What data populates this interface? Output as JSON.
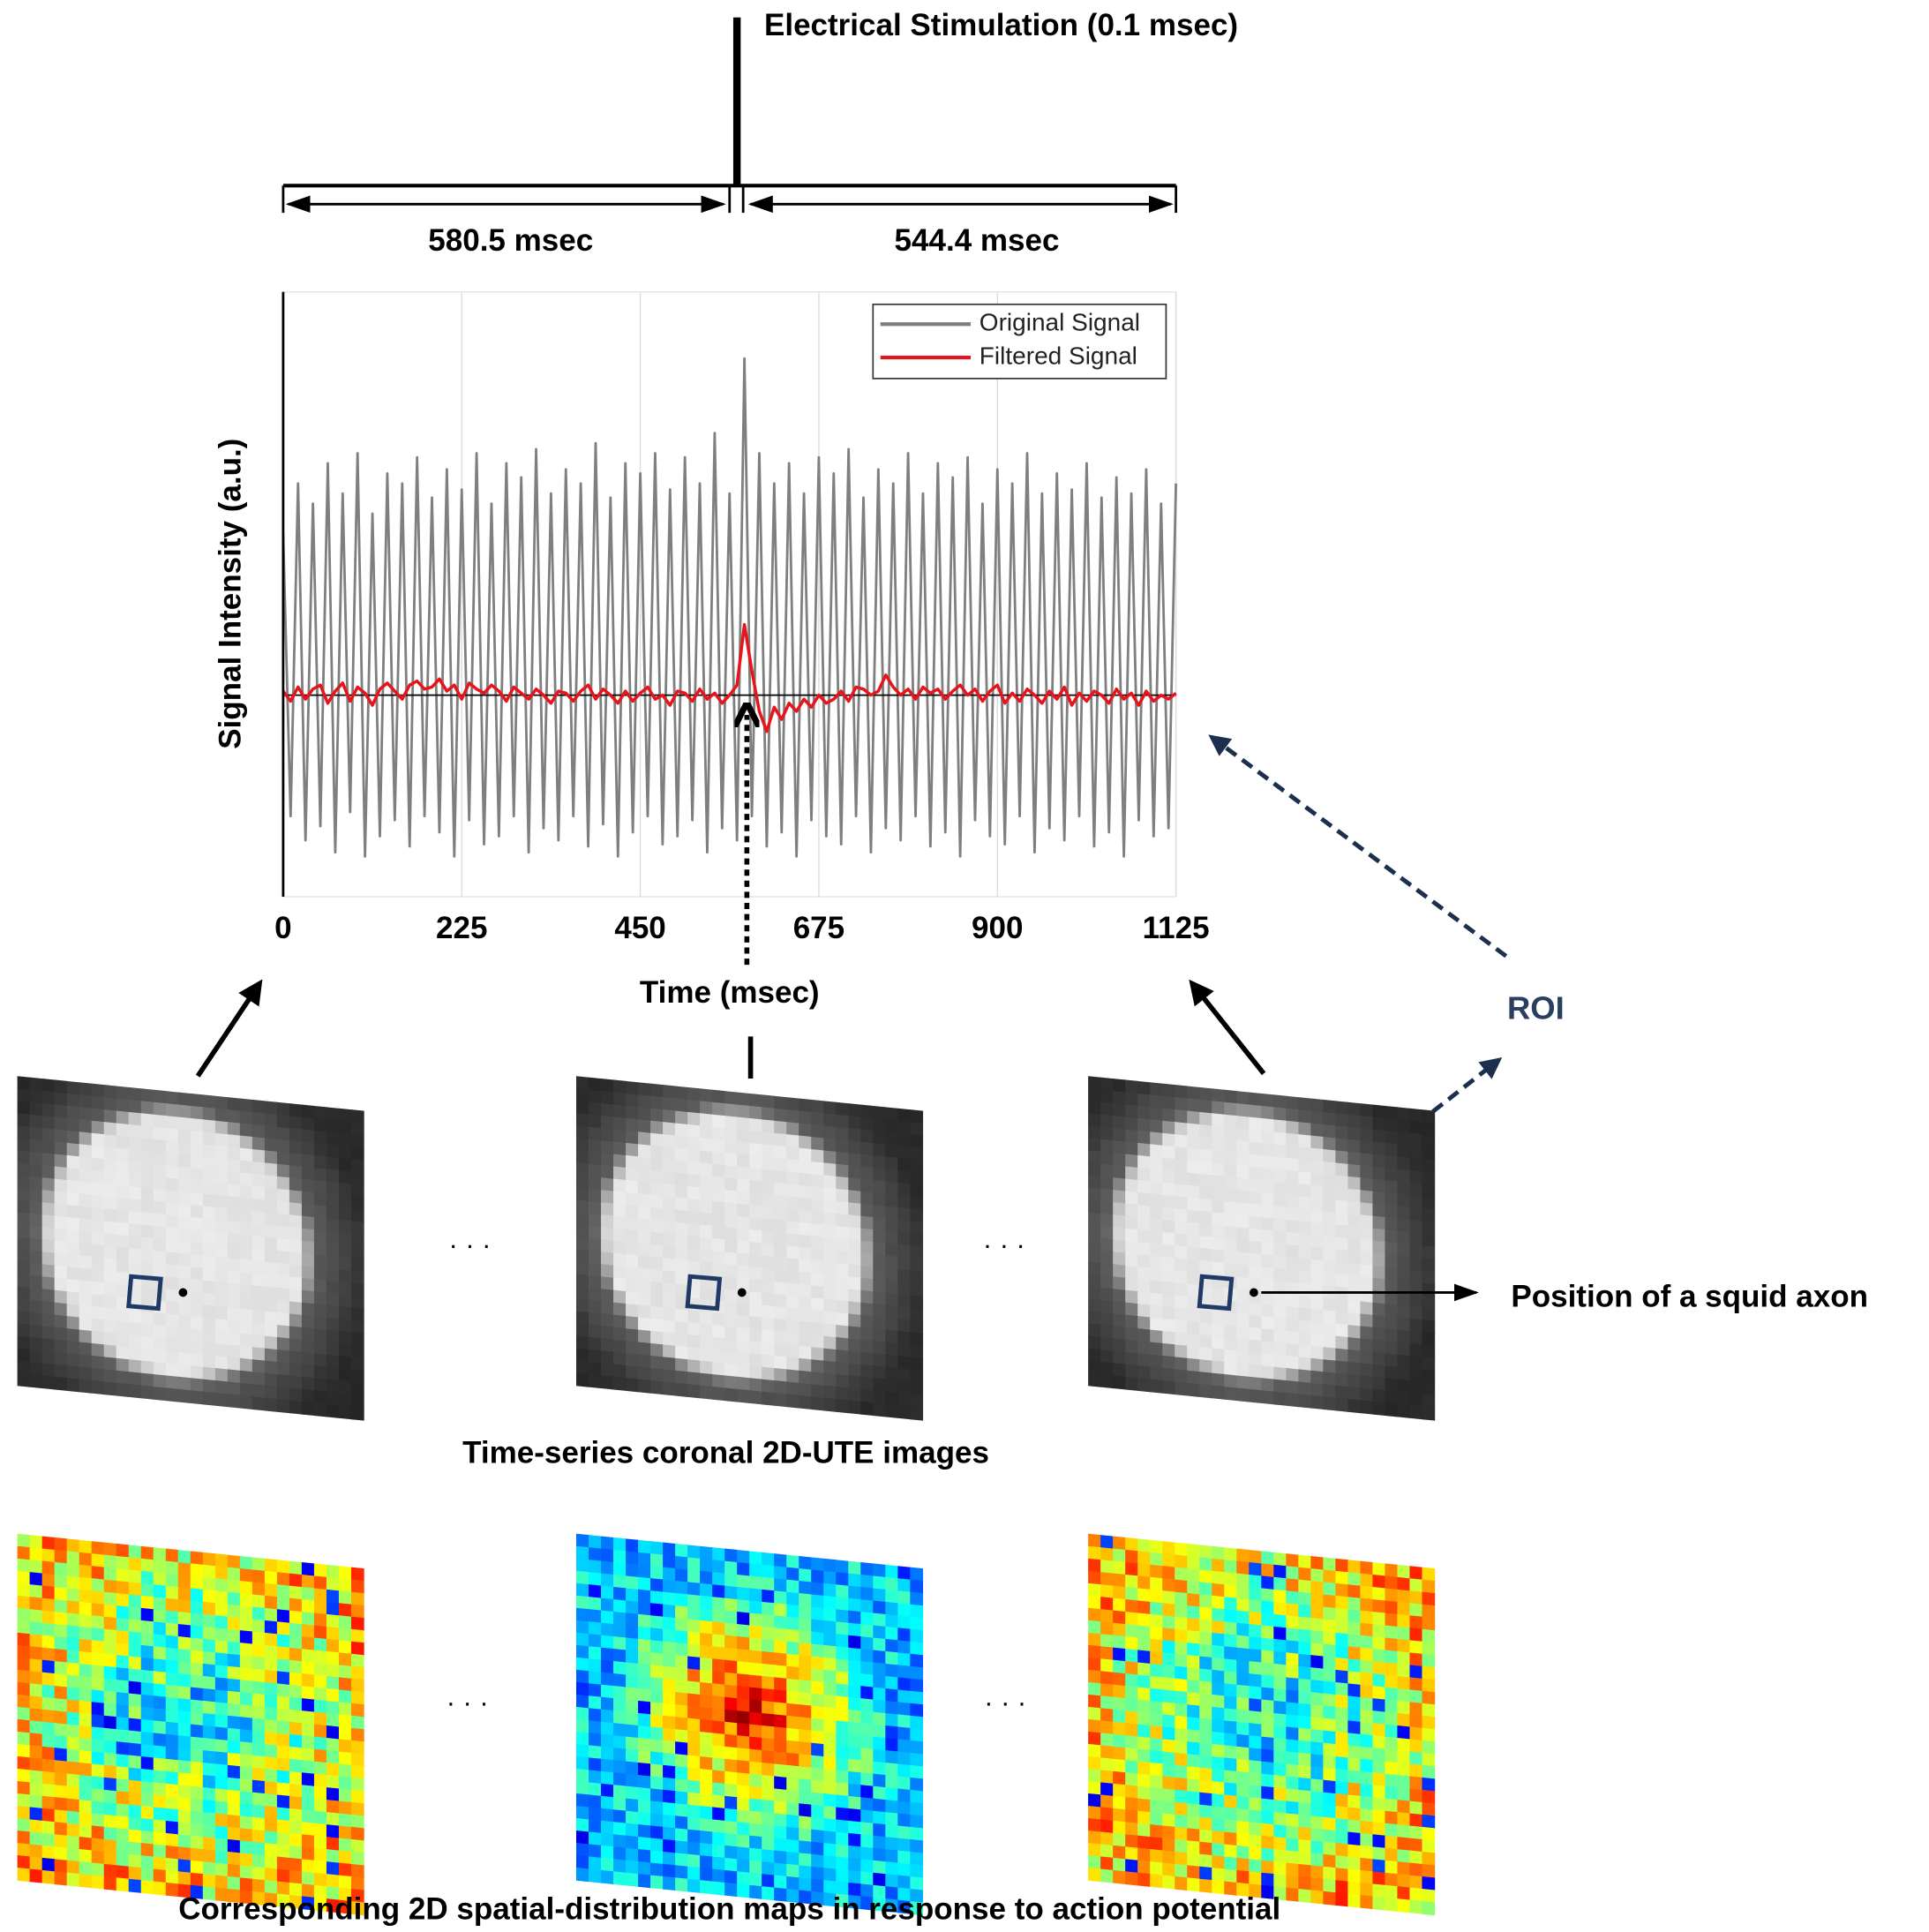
{
  "chart_data": {
    "type": "line",
    "x_label": "Time (msec)",
    "y_label": "Signal Intensity (a.u.)",
    "x": [
      0,
      9.375,
      18.75,
      28.125,
      37.5,
      46.875,
      56.25,
      65.625,
      75,
      84.375,
      93.75,
      103.125,
      112.5,
      121.875,
      131.25,
      140.625,
      150,
      159.375,
      168.75,
      178.125,
      187.5,
      196.875,
      206.25,
      215.625,
      225,
      234.375,
      243.75,
      253.125,
      262.5,
      271.875,
      281.25,
      290.625,
      300,
      309.375,
      318.75,
      328.125,
      337.5,
      346.875,
      356.25,
      365.625,
      375,
      384.375,
      393.75,
      403.125,
      412.5,
      421.875,
      431.25,
      440.625,
      450,
      459.375,
      468.75,
      478.125,
      487.5,
      496.875,
      506.25,
      515.625,
      525,
      534.375,
      543.75,
      553.125,
      562.5,
      571.875,
      581.25,
      590.625,
      600,
      609.375,
      618.75,
      628.125,
      637.5,
      646.875,
      656.25,
      665.625,
      675,
      684.375,
      693.75,
      703.125,
      712.5,
      721.875,
      731.25,
      740.625,
      750,
      759.375,
      768.75,
      778.125,
      787.5,
      796.875,
      806.25,
      815.625,
      825,
      834.375,
      843.75,
      853.125,
      862.5,
      871.875,
      881.25,
      890.625,
      900,
      909.375,
      918.75,
      928.125,
      937.5,
      946.875,
      956.25,
      965.625,
      975,
      984.375,
      993.75,
      1003.125,
      1012.5,
      1021.875,
      1031.25,
      1040.625,
      1050,
      1059.375,
      1068.75,
      1078.125,
      1087.5,
      1096.875,
      1106.25,
      1115.625,
      1125
    ],
    "series": [
      {
        "name": "Original Signal",
        "color": "#7f7f7f",
        "values": [
          0.8,
          -0.6,
          1.05,
          -0.72,
          0.95,
          -0.65,
          1.15,
          -0.78,
          1.0,
          -0.58,
          1.2,
          -0.8,
          0.9,
          -0.7,
          1.1,
          -0.62,
          1.05,
          -0.75,
          1.18,
          -0.6,
          0.98,
          -0.68,
          1.12,
          -0.8,
          1.02,
          -0.62,
          1.2,
          -0.74,
          0.95,
          -0.7,
          1.15,
          -0.6,
          1.08,
          -0.78,
          1.22,
          -0.66,
          1.0,
          -0.72,
          1.12,
          -0.6,
          1.05,
          -0.75,
          1.25,
          -0.64,
          0.98,
          -0.8,
          1.15,
          -0.68,
          1.1,
          -0.6,
          1.2,
          -0.74,
          1.02,
          -0.7,
          1.18,
          -0.62,
          1.05,
          -0.78,
          1.3,
          -0.66,
          1.0,
          -0.72,
          1.67,
          -0.6,
          1.2,
          -0.75,
          1.05,
          -0.68,
          1.15,
          -0.8,
          1.0,
          -0.62,
          1.18,
          -0.7,
          1.1,
          -0.74,
          1.22,
          -0.6,
          0.98,
          -0.78,
          1.12,
          -0.66,
          1.05,
          -0.72,
          1.2,
          -0.6,
          1.0,
          -0.75,
          1.15,
          -0.68,
          1.08,
          -0.8,
          1.18,
          -0.62,
          0.95,
          -0.7,
          1.12,
          -0.74,
          1.05,
          -0.6,
          1.2,
          -0.78,
          1.0,
          -0.66,
          1.1,
          -0.72,
          1.02,
          -0.6,
          1.15,
          -0.75,
          0.98,
          -0.68,
          1.08,
          -0.8,
          1.0,
          -0.62,
          1.12,
          -0.7,
          0.95,
          -0.66,
          1.05
        ]
      },
      {
        "name": "Filtered Signal",
        "color": "#e8141c",
        "values": [
          0.02,
          -0.03,
          0.04,
          -0.02,
          0.03,
          0.05,
          -0.04,
          0.02,
          0.06,
          -0.03,
          0.04,
          0.01,
          -0.05,
          0.03,
          0.06,
          0.02,
          -0.02,
          0.05,
          0.07,
          0.03,
          0.04,
          0.08,
          0.02,
          0.05,
          -0.02,
          0.06,
          0.03,
          0.01,
          0.05,
          0.02,
          -0.03,
          0.04,
          0.01,
          -0.02,
          0.03,
          0.0,
          -0.04,
          0.02,
          0.01,
          -0.03,
          0.02,
          0.05,
          -0.02,
          0.03,
          0.0,
          -0.04,
          0.02,
          -0.03,
          0.01,
          0.04,
          -0.02,
          0.0,
          -0.05,
          0.02,
          0.01,
          -0.03,
          0.03,
          -0.02,
          0.01,
          -0.04,
          0.0,
          0.05,
          0.35,
          0.12,
          -0.08,
          -0.18,
          -0.06,
          -0.12,
          -0.04,
          -0.08,
          -0.02,
          -0.06,
          0.0,
          -0.04,
          -0.02,
          0.02,
          -0.03,
          0.04,
          0.03,
          0.0,
          0.02,
          0.1,
          0.04,
          0.0,
          0.03,
          -0.02,
          0.04,
          0.01,
          0.03,
          -0.02,
          0.02,
          0.05,
          0.0,
          0.03,
          -0.03,
          0.02,
          0.05,
          -0.04,
          0.01,
          -0.03,
          0.03,
          0.0,
          -0.04,
          0.02,
          -0.02,
          0.04,
          -0.05,
          0.01,
          -0.03,
          0.02,
          0.0,
          -0.04,
          0.03,
          -0.02,
          0.01,
          -0.05,
          0.02,
          -0.03,
          0.0,
          -0.02,
          0.01
        ]
      }
    ],
    "xlim": [
      0,
      1125
    ],
    "ylim": [
      -1,
      2
    ],
    "xticks": [
      0,
      225,
      450,
      675,
      900,
      1125
    ],
    "grid": true,
    "legend": "upper right"
  },
  "diagram": {
    "stimulus": "Electrical Stimulation (0.1 msec)",
    "pre_interval": "580.5 msec",
    "post_interval": "544.4 msec",
    "roi": "ROI",
    "axon_label": "Position of a squid axon",
    "images_caption": "Time-series coronal 2D-UTE images",
    "maps_caption": "Corresponding 2D spatial-distribution maps in response to action potential",
    "ellipses": [
      "· · ·",
      "· · ·",
      "· · ·",
      "· · ·"
    ]
  }
}
